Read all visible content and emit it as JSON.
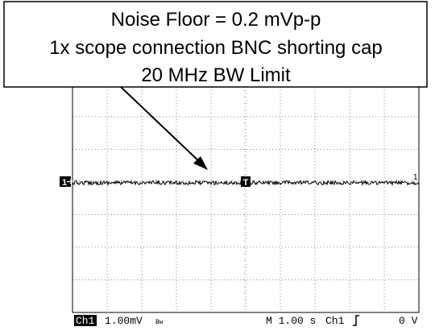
{
  "annotation": {
    "lines": [
      "Noise Floor = 0.2 mVp-p",
      "1x scope connection BNC shorting cap",
      "20 MHz BW Limit"
    ]
  },
  "markers": {
    "channel": "1",
    "trigger": "T",
    "end": "1"
  },
  "status": {
    "channel": "Ch1",
    "scale": "1.00mV",
    "bw": "Bw",
    "timebase": "M 1.00 s",
    "trigger_source": "Ch1",
    "trigger_level": "0 V"
  }
}
